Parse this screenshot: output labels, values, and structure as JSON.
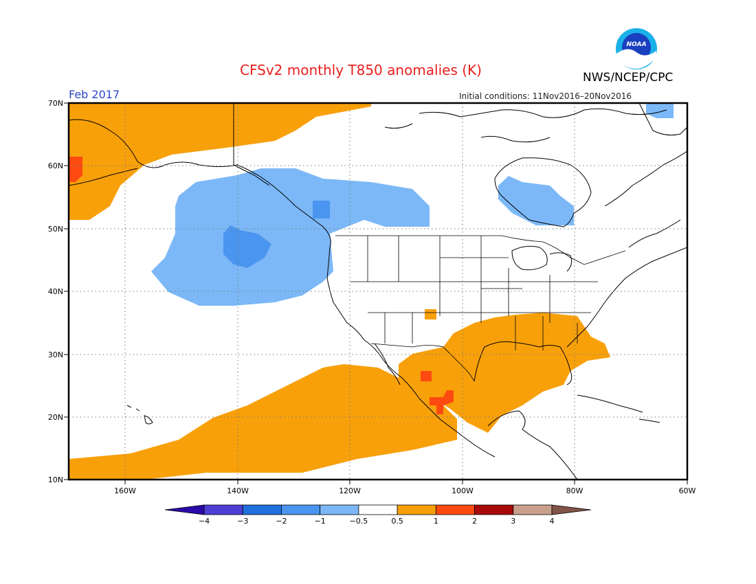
{
  "title": "CFSv2 monthly T850 anomalies (K)",
  "agency": "NWS/NCEP/CPC",
  "logo_text": "NOAA",
  "period": "Feb 2017",
  "initial_conditions": "Initial conditions: 11Nov2016–20Nov2016",
  "map": {
    "lat_labels": [
      "70N",
      "60N",
      "50N",
      "40N",
      "30N",
      "20N",
      "10N"
    ],
    "lon_labels": [
      "160W",
      "140W",
      "120W",
      "100W",
      "80W",
      "60W"
    ],
    "grid": "dotted"
  },
  "colorbar": {
    "tick_labels": [
      "−4",
      "−3",
      "−2",
      "−1",
      "−0.5",
      "0.5",
      "1",
      "2",
      "3",
      "4"
    ],
    "colors": [
      "#2a0aa8",
      "#4d3fd6",
      "#1f6fdc",
      "#4a95ef",
      "#7cb8f7",
      "#ffffff",
      "#f8a00a",
      "#fc4a10",
      "#a60a0a",
      "#c9a08c",
      "#805446"
    ]
  },
  "colors": {
    "title": "#e8211f",
    "period": "#2b46c9",
    "warm": "#f8a00a",
    "hot": "#fc4a10",
    "cool": "#7cb8f7",
    "cooler": "#4a95ef"
  }
}
